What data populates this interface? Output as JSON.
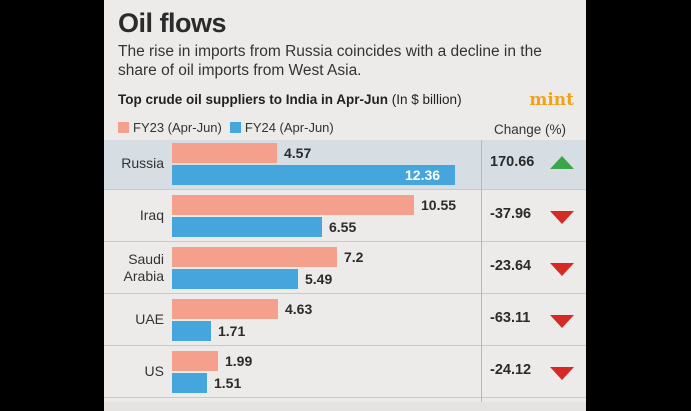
{
  "header": {
    "title": "Oil flows",
    "subtitle": "The rise in imports from Russia coincides with a decline in the share of oil imports from West Asia.",
    "subhead_bold": "Top crude oil suppliers to India in Apr-Jun",
    "subhead_unit": "(In $ billion)",
    "brand": "mint",
    "change_header": "Change (%)"
  },
  "colors": {
    "fy23": "#f4a08c",
    "fy24": "#44a6dc",
    "up": "#3aa64a",
    "down": "#d62a24",
    "highlight": "#d6dde3"
  },
  "chart_data": {
    "type": "bar",
    "orientation": "horizontal",
    "title": "Oil flows",
    "categories": [
      "Russia",
      "Iraq",
      "Saudi Arabia",
      "UAE",
      "US"
    ],
    "category_lines": [
      [
        "Russia"
      ],
      [
        "Iraq"
      ],
      [
        "Saudi",
        "Arabia"
      ],
      [
        "UAE"
      ],
      [
        "US"
      ]
    ],
    "series": [
      {
        "name": "FY23 (Apr-Jun)",
        "values": [
          4.57,
          10.55,
          7.2,
          4.63,
          1.99
        ]
      },
      {
        "name": "FY24 (Apr-Jun)",
        "values": [
          12.36,
          6.55,
          5.49,
          1.71,
          1.51
        ]
      }
    ],
    "value_labels": [
      [
        "4.57",
        "10.55",
        "7.2",
        "4.63",
        "1.99"
      ],
      [
        "12.36",
        "6.55",
        "5.49",
        "1.71",
        "1.51"
      ]
    ],
    "change_pct": [
      "170.66",
      "-37.96",
      "-23.64",
      "-63.11",
      "-24.12"
    ],
    "change_direction": [
      "up",
      "down",
      "down",
      "down",
      "down"
    ],
    "xlim": [
      0,
      13
    ],
    "unit": "$ billion",
    "highlighted": "Russia"
  }
}
